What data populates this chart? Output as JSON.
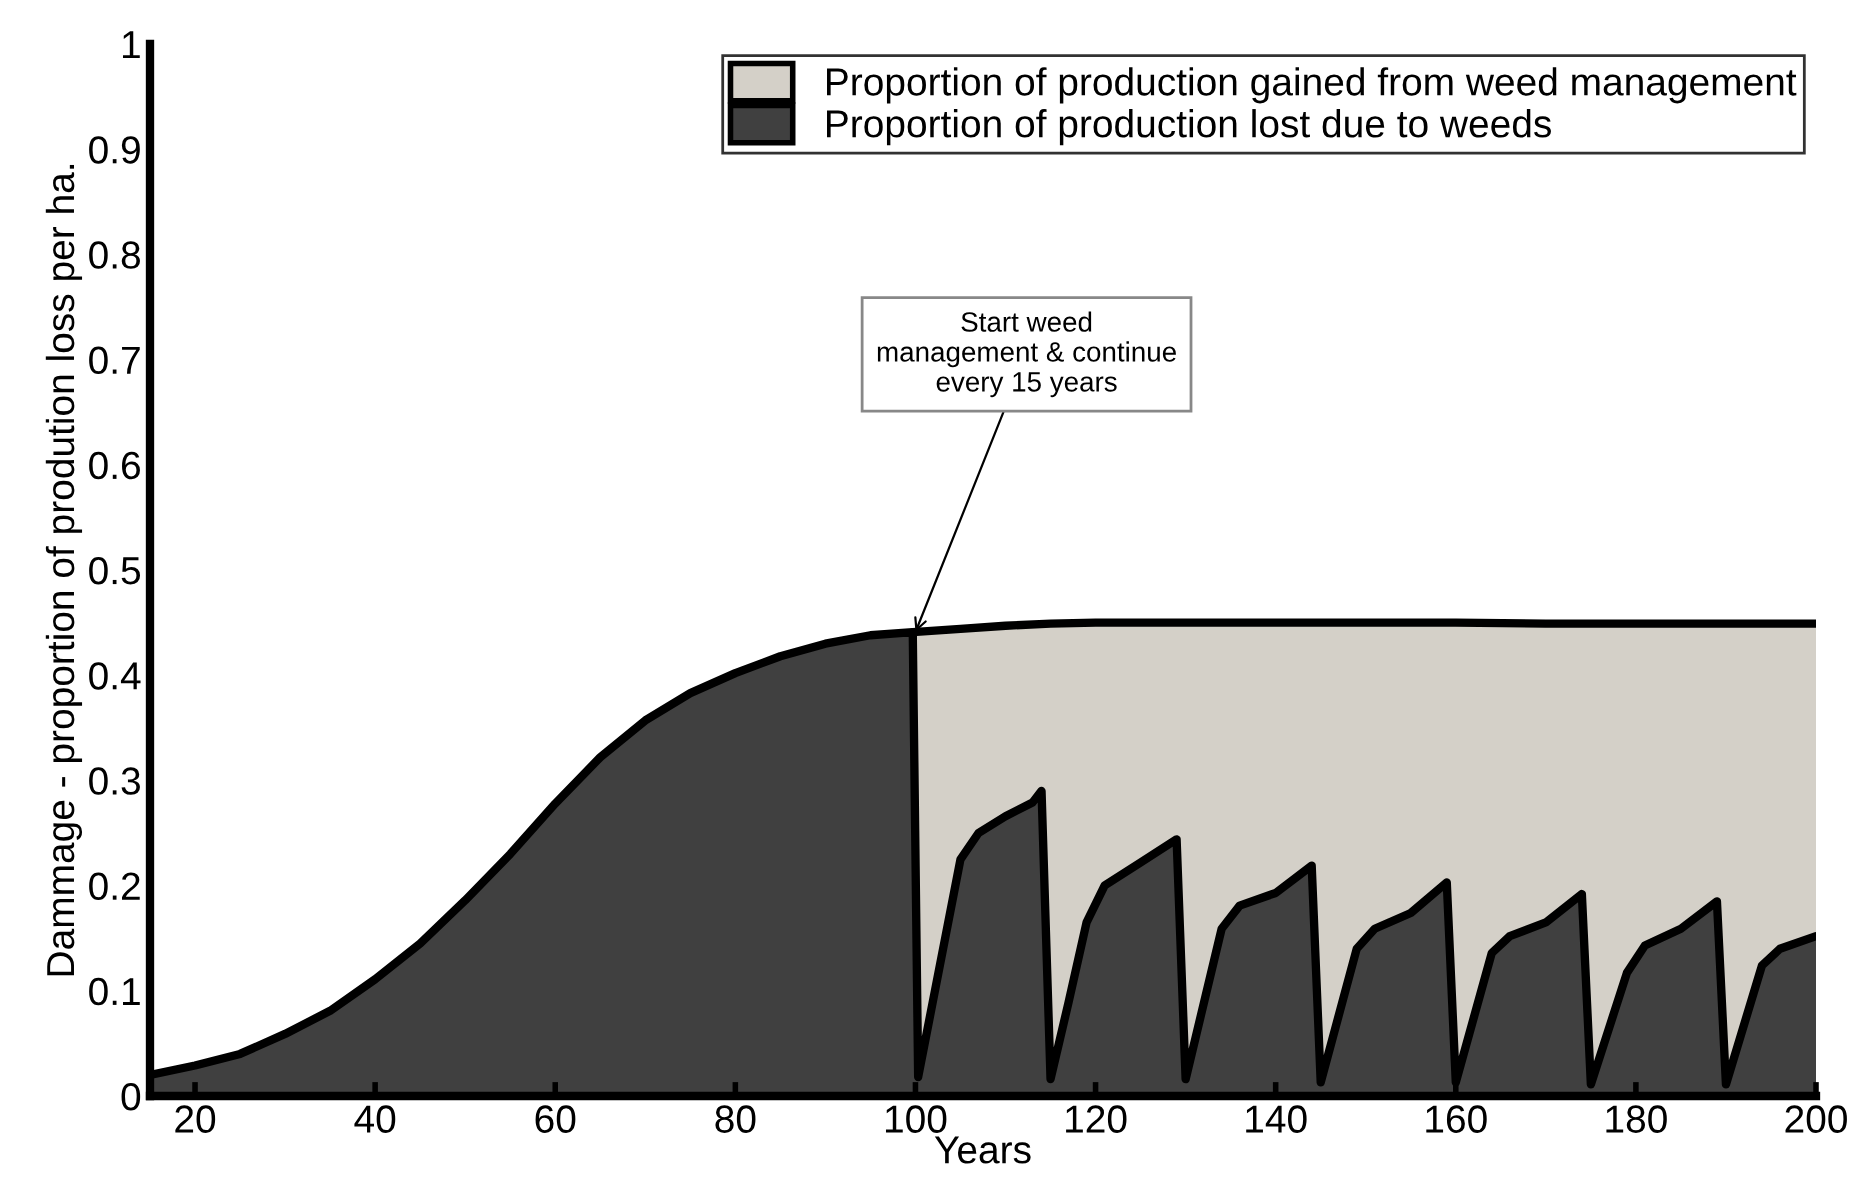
{
  "chart_data": {
    "type": "area",
    "xlabel": "Years",
    "ylabel": "Dammage - proportion of prodution loss per ha.",
    "xlim": [
      15,
      200
    ],
    "xticks": [
      20,
      40,
      60,
      80,
      100,
      120,
      140,
      160,
      180,
      200
    ],
    "ylim": [
      0,
      1
    ],
    "yticks": [
      0,
      0.1,
      0.2,
      0.3,
      0.4,
      0.5,
      0.6,
      0.7,
      0.8,
      0.9,
      1
    ],
    "grid": false,
    "legend": "top right",
    "series": [
      {
        "name": "Proportion of production gained from weed management",
        "color": "#d4d0c8",
        "x": [
          99.7,
          105,
          110,
          115,
          120,
          130,
          160,
          170,
          200
        ],
        "values": [
          0.441,
          0.444,
          0.447,
          0.449,
          0.45,
          0.45,
          0.45,
          0.449,
          0.449
        ]
      },
      {
        "name": "Proportion of production lost due to weeds",
        "color": "#404040",
        "x": [
          15,
          20,
          25,
          30,
          35,
          40,
          45,
          50,
          55,
          60,
          65,
          70,
          75,
          80,
          85,
          90,
          95,
          99.7,
          100.3,
          105,
          107,
          110,
          113,
          114,
          115,
          117,
          119,
          121,
          125,
          129,
          130,
          134,
          136,
          140,
          144,
          145,
          149,
          151,
          155,
          159,
          160,
          164,
          166,
          170,
          174,
          175,
          179,
          181,
          185,
          189,
          190,
          194,
          196,
          200
        ],
        "values": [
          0.02,
          0.029,
          0.04,
          0.059,
          0.081,
          0.111,
          0.145,
          0.186,
          0.23,
          0.278,
          0.322,
          0.357,
          0.383,
          0.402,
          0.418,
          0.43,
          0.438,
          0.441,
          0.018,
          0.225,
          0.25,
          0.266,
          0.279,
          0.29,
          0.016,
          0.089,
          0.165,
          0.2,
          0.222,
          0.244,
          0.016,
          0.159,
          0.181,
          0.193,
          0.219,
          0.013,
          0.14,
          0.159,
          0.174,
          0.203,
          0.013,
          0.136,
          0.152,
          0.165,
          0.192,
          0.011,
          0.117,
          0.143,
          0.159,
          0.185,
          0.011,
          0.124,
          0.14,
          0.152
        ]
      }
    ],
    "annotations": [
      {
        "text": "Start weed\nmanagement & continue\nevery 15 years",
        "x": 100,
        "y": 0.441
      }
    ]
  }
}
